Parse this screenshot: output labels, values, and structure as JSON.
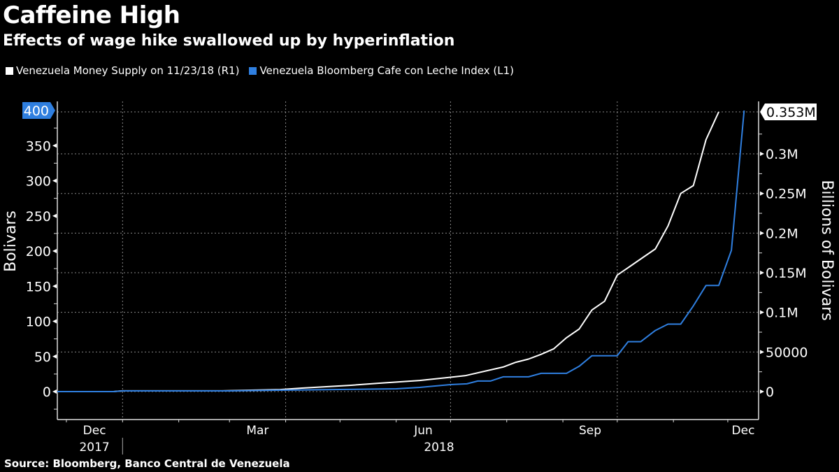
{
  "header": {
    "title": "Caffeine High",
    "subtitle": "Effects of wage hike swallowed up by hyperinflation"
  },
  "footer": {
    "source": "Source: Bloomberg, Banco Central de Venezuela"
  },
  "colors": {
    "background": "#000000",
    "money_supply": "#ffffff",
    "cafe_index": "#2f7fe0",
    "grid": "#777777"
  },
  "chart_data": {
    "type": "line",
    "title": "Caffeine High",
    "subtitle": "Effects of wage hike swallowed up by hyperinflation",
    "grid": true,
    "legend_position": "top-left",
    "x_axis": {
      "type": "date",
      "range": [
        "2017-11-26",
        "2018-12-18"
      ],
      "tick_labels": [
        {
          "date": "2017-12-01",
          "label": "Dec",
          "year": "2017"
        },
        {
          "date": "2018-03-01",
          "label": "Mar",
          "year": ""
        },
        {
          "date": "2018-06-01",
          "label": "Jun",
          "year": "2018"
        },
        {
          "date": "2018-09-01",
          "label": "Sep",
          "year": ""
        },
        {
          "date": "2018-12-01",
          "label": "Dec",
          "year": ""
        }
      ]
    },
    "y_left": {
      "label": "Bolivars",
      "range": [
        -40,
        400
      ],
      "ticks": [
        0,
        50,
        100,
        150,
        200,
        250,
        300,
        350,
        400
      ],
      "tick_labels": [
        "0",
        "50",
        "100",
        "150",
        "200",
        "250",
        "300",
        "350",
        "400"
      ],
      "last_value_label": "400"
    },
    "y_right": {
      "label": "Billions of Bolivars",
      "range": [
        -35000,
        353000
      ],
      "ticks": [
        0,
        50000,
        100000,
        150000,
        200000,
        250000,
        300000
      ],
      "tick_labels": [
        "0",
        "50000",
        "0.1M",
        "0.15M",
        "0.2M",
        "0.25M",
        "0.3M"
      ],
      "last_value_label": "0.353M"
    },
    "series": [
      {
        "name": "Venezuela Money Supply on 11/23/18 (R1)",
        "axis": "right",
        "color": "#ffffff",
        "x": [
          "2017-11-26",
          "2017-12-27",
          "2018-01-01",
          "2018-02-25",
          "2018-03-29",
          "2018-04-10",
          "2018-05-07",
          "2018-05-22",
          "2018-06-14",
          "2018-07-09",
          "2018-07-30",
          "2018-08-06",
          "2018-08-13",
          "2018-08-20",
          "2018-08-27",
          "2018-09-03",
          "2018-09-10",
          "2018-09-17",
          "2018-09-24",
          "2018-10-01",
          "2018-10-08",
          "2018-10-15",
          "2018-10-22",
          "2018-10-29",
          "2018-11-05",
          "2018-11-12",
          "2018-11-19",
          "2018-11-26"
        ],
        "y": [
          0,
          0,
          1000,
          1000,
          2600,
          4400,
          7900,
          10500,
          14000,
          20000,
          31000,
          37000,
          41000,
          47000,
          54000,
          68000,
          79000,
          103000,
          114000,
          147000,
          158000,
          169000,
          180000,
          209000,
          250000,
          260000,
          318000,
          353000
        ]
      },
      {
        "name": "Venezuela Bloomberg Cafe con Leche Index (L1)",
        "axis": "left",
        "color": "#2f7fe0",
        "x": [
          "2017-11-26",
          "2017-12-27",
          "2018-01-01",
          "2018-03-01",
          "2018-03-29",
          "2018-05-01",
          "2018-06-01",
          "2018-06-14",
          "2018-07-01",
          "2018-07-10",
          "2018-07-16",
          "2018-07-23",
          "2018-07-30",
          "2018-08-13",
          "2018-08-20",
          "2018-09-03",
          "2018-09-10",
          "2018-09-17",
          "2018-10-01",
          "2018-10-07",
          "2018-10-14",
          "2018-10-22",
          "2018-10-29",
          "2018-11-05",
          "2018-11-12",
          "2018-11-19",
          "2018-11-26",
          "2018-12-03",
          "2018-12-10"
        ],
        "y": [
          0,
          0,
          1,
          1,
          2,
          3,
          4,
          6,
          10,
          11,
          15,
          15,
          21,
          21,
          26,
          26,
          36,
          51,
          51,
          71,
          71,
          87,
          96,
          96,
          122,
          151,
          151,
          201,
          400
        ]
      }
    ]
  }
}
